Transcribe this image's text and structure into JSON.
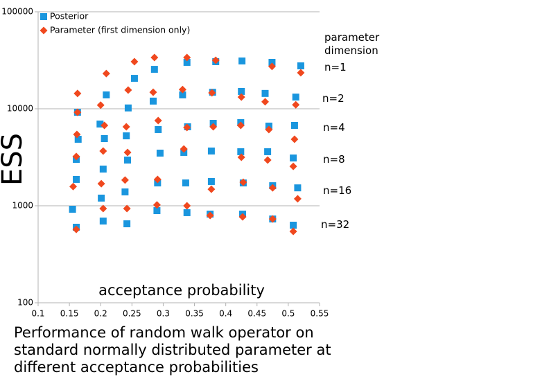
{
  "chart_data": {
    "type": "scatter",
    "caption": "Performance of random walk operator on standard normally distributed parameter at different acceptance probabilities",
    "xlabel": "acceptance probability",
    "ylabel": "ESS",
    "annotations": [
      "parameter dimension",
      "n=1",
      "n=2",
      "n=4",
      "n=8",
      "n=16",
      "n=32"
    ],
    "xlim": [
      0.1,
      0.55
    ],
    "xticks": [
      0.1,
      0.15,
      0.2,
      0.25,
      0.3,
      0.35,
      0.4,
      0.45,
      0.5,
      0.55
    ],
    "ylim": [
      100,
      100000
    ],
    "yticks": [
      100,
      1000,
      10000,
      100000
    ],
    "ylog": true,
    "grid": true,
    "legend": "upper left",
    "series": [
      {
        "name": "Posterior",
        "color": "#1a96de",
        "marker": "square",
        "x": [
          0.254,
          0.286,
          0.338,
          0.384,
          0.426,
          0.474,
          0.52,
          0.209,
          0.244,
          0.284,
          0.331,
          0.379,
          0.425,
          0.463,
          0.512,
          0.163,
          0.199,
          0.241,
          0.292,
          0.339,
          0.38,
          0.424,
          0.469,
          0.51,
          0.164,
          0.206,
          0.161,
          0.204,
          0.243,
          0.295,
          0.333,
          0.377,
          0.424,
          0.467,
          0.508,
          0.161,
          0.201,
          0.239,
          0.291,
          0.336,
          0.377,
          0.428,
          0.475,
          0.515,
          0.155,
          0.161,
          0.204,
          0.242,
          0.29,
          0.338,
          0.375,
          0.427,
          0.475,
          0.508
        ],
        "values": [
          20600,
          25500,
          30100,
          30600,
          31100,
          30100,
          27700,
          13900,
          10200,
          12000,
          13900,
          14800,
          15100,
          14400,
          13200,
          9200,
          6960,
          5260,
          6110,
          6520,
          7080,
          7200,
          6630,
          6740,
          4850,
          4930,
          3010,
          2390,
          2960,
          3490,
          3550,
          3670,
          3610,
          3610,
          3110,
          1870,
          1200,
          1390,
          1720,
          1720,
          1780,
          1720,
          1610,
          1530,
          921,
          601,
          696,
          652,
          891,
          849,
          821,
          821,
          731,
          631
        ]
      },
      {
        "name": "Parameter (first dimension only)",
        "color": "#f0481e",
        "marker": "diamond",
        "x": [
          0.209,
          0.254,
          0.286,
          0.338,
          0.384,
          0.474,
          0.52,
          0.163,
          0.2,
          0.244,
          0.284,
          0.331,
          0.378,
          0.425,
          0.463,
          0.512,
          0.163,
          0.206,
          0.241,
          0.292,
          0.338,
          0.38,
          0.424,
          0.469,
          0.51,
          0.162,
          0.161,
          0.204,
          0.243,
          0.333,
          0.425,
          0.467,
          0.508,
          0.156,
          0.201,
          0.239,
          0.291,
          0.377,
          0.428,
          0.475,
          0.515,
          0.204,
          0.161,
          0.242,
          0.29,
          0.338,
          0.375,
          0.427,
          0.475,
          0.508
        ],
        "values": [
          23100,
          30600,
          33800,
          33800,
          31600,
          27300,
          23500,
          14400,
          10900,
          15600,
          14800,
          15800,
          14600,
          13200,
          11800,
          11000,
          9200,
          6740,
          6520,
          7560,
          6410,
          6520,
          6740,
          6110,
          4850,
          5440,
          3220,
          3670,
          3550,
          3850,
          3160,
          2960,
          2550,
          1580,
          1690,
          1840,
          1870,
          1480,
          1750,
          1530,
          1180,
          936,
          571,
          936,
          1020,
          1000,
          794,
          769,
          731,
          544
        ]
      }
    ]
  }
}
